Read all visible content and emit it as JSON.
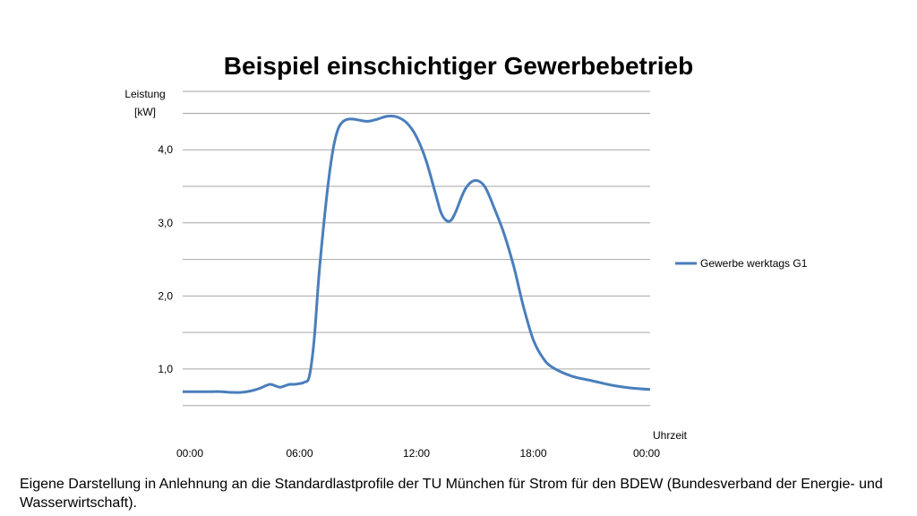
{
  "chart_data": {
    "type": "line",
    "title": "Beispiel einschichtiger Gewerbebetrieb",
    "ylabel_line1": "Leistung",
    "ylabel_line2": "[kW]",
    "xlabel": "Uhrzeit",
    "ylim": [
      0.3,
      4.8
    ],
    "xlim": [
      0,
      24
    ],
    "y_ticks": [
      1.0,
      2.0,
      3.0,
      4.0
    ],
    "y_tick_labels": [
      "1,0",
      "2,0",
      "3,0",
      "4,0"
    ],
    "x_ticks": [
      0,
      6,
      12,
      18,
      24
    ],
    "x_tick_labels": [
      "00:00",
      "06:00",
      "12:00",
      "18:00",
      "00:00"
    ],
    "grid": true,
    "legend_position": "right",
    "series": [
      {
        "name": "Gewerbe werktags G1",
        "color": "#4a7ebb",
        "x": [
          0,
          1,
          1.5,
          2,
          2.5,
          3,
          3.5,
          4,
          4.25,
          4.5,
          4.75,
          5,
          5.25,
          5.5,
          5.75,
          6,
          6.25,
          6.5,
          6.75,
          7,
          7.25,
          7.5,
          7.75,
          8,
          8.25,
          8.5,
          8.75,
          9,
          9.5,
          10,
          10.5,
          11,
          11.5,
          12,
          12.5,
          13,
          13.25,
          13.5,
          13.75,
          14,
          14.5,
          15,
          15.5,
          16,
          16.5,
          17,
          17.5,
          18,
          18.5,
          19,
          20,
          21,
          22,
          23,
          24
        ],
        "values": [
          0.69,
          0.69,
          0.69,
          0.69,
          0.68,
          0.68,
          0.7,
          0.74,
          0.77,
          0.79,
          0.77,
          0.75,
          0.77,
          0.79,
          0.79,
          0.8,
          0.82,
          0.9,
          1.4,
          2.3,
          3.0,
          3.6,
          4.05,
          4.3,
          4.39,
          4.42,
          4.42,
          4.41,
          4.39,
          4.42,
          4.46,
          4.45,
          4.37,
          4.18,
          3.85,
          3.38,
          3.15,
          3.04,
          3.03,
          3.14,
          3.46,
          3.58,
          3.5,
          3.2,
          2.85,
          2.4,
          1.85,
          1.4,
          1.15,
          1.02,
          0.9,
          0.84,
          0.78,
          0.74,
          0.72
        ]
      }
    ]
  },
  "caption": "Eigene Darstellung in Anlehnung an die Standardlastprofile der TU München für Strom für den BDEW (Bundesverband der Energie- und Wasserwirtschaft)."
}
